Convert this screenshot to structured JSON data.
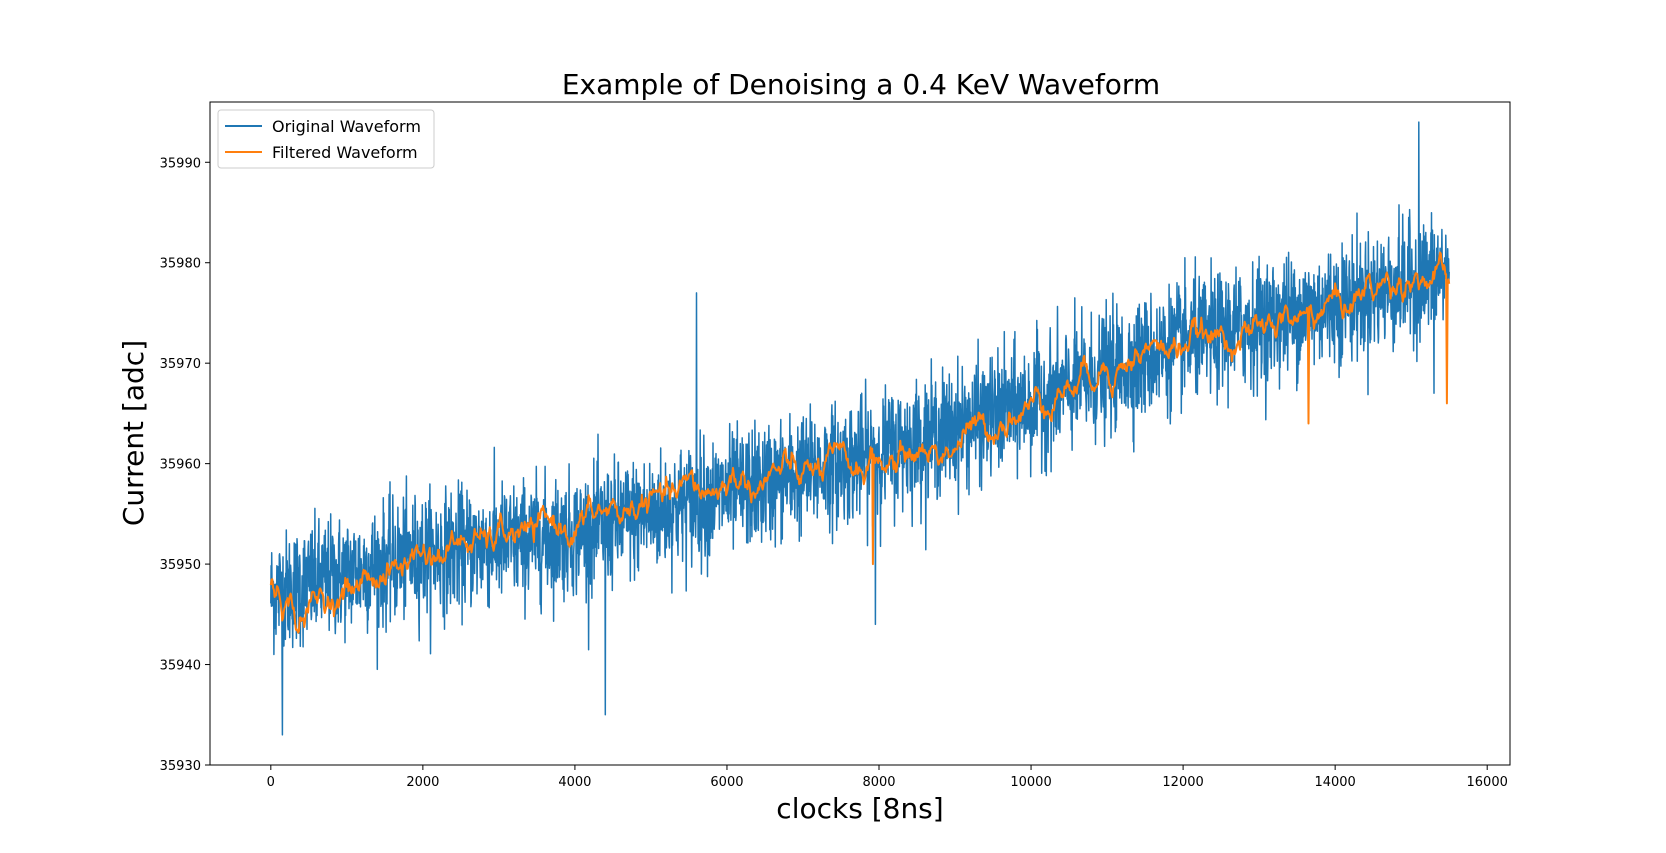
{
  "chart_data": {
    "type": "line",
    "title": "Example of Denoising a 0.4 KeV Waveform",
    "xlabel": "clocks [8ns]",
    "ylabel": "Current [adc]",
    "xlim": [
      -800,
      16300
    ],
    "ylim": [
      35930,
      35996
    ],
    "xticks": [
      0,
      2000,
      4000,
      6000,
      8000,
      10000,
      12000,
      14000,
      16000
    ],
    "yticks": [
      35930,
      35940,
      35950,
      35960,
      35970,
      35980,
      35990
    ],
    "grid": false,
    "legend_position": "top-left",
    "x_range": [
      0,
      15500
    ],
    "series": [
      {
        "name": "Original Waveform",
        "color": "#1f77b4",
        "trend": [
          [
            0,
            35947
          ],
          [
            2000,
            35951
          ],
          [
            4000,
            35953
          ],
          [
            6000,
            35957
          ],
          [
            8000,
            35961
          ],
          [
            10000,
            35966
          ],
          [
            12000,
            35972
          ],
          [
            14000,
            35976
          ],
          [
            15500,
            35979
          ]
        ],
        "noise_amplitude": 6.5,
        "extremes": [
          [
            150,
            35933
          ],
          [
            4400,
            35935
          ],
          [
            5600,
            35977
          ],
          [
            7950,
            35944
          ],
          [
            15100,
            35994
          ],
          [
            15300,
            35967
          ]
        ]
      },
      {
        "name": "Filtered Waveform",
        "color": "#ff7f0e",
        "trend": [
          [
            0,
            35948
          ],
          [
            300,
            35945
          ],
          [
            2000,
            35951
          ],
          [
            4000,
            35954
          ],
          [
            6000,
            35958
          ],
          [
            8000,
            35960
          ],
          [
            9000,
            35962
          ],
          [
            10000,
            35966
          ],
          [
            11000,
            35970
          ],
          [
            12000,
            35972
          ],
          [
            13000,
            35973
          ],
          [
            14000,
            35976
          ],
          [
            15000,
            35979
          ],
          [
            15500,
            35978
          ]
        ],
        "ripple_amplitude": 1.6,
        "spikes": [
          [
            7920,
            35950
          ],
          [
            13650,
            35964
          ],
          [
            15470,
            35966
          ]
        ]
      }
    ]
  }
}
